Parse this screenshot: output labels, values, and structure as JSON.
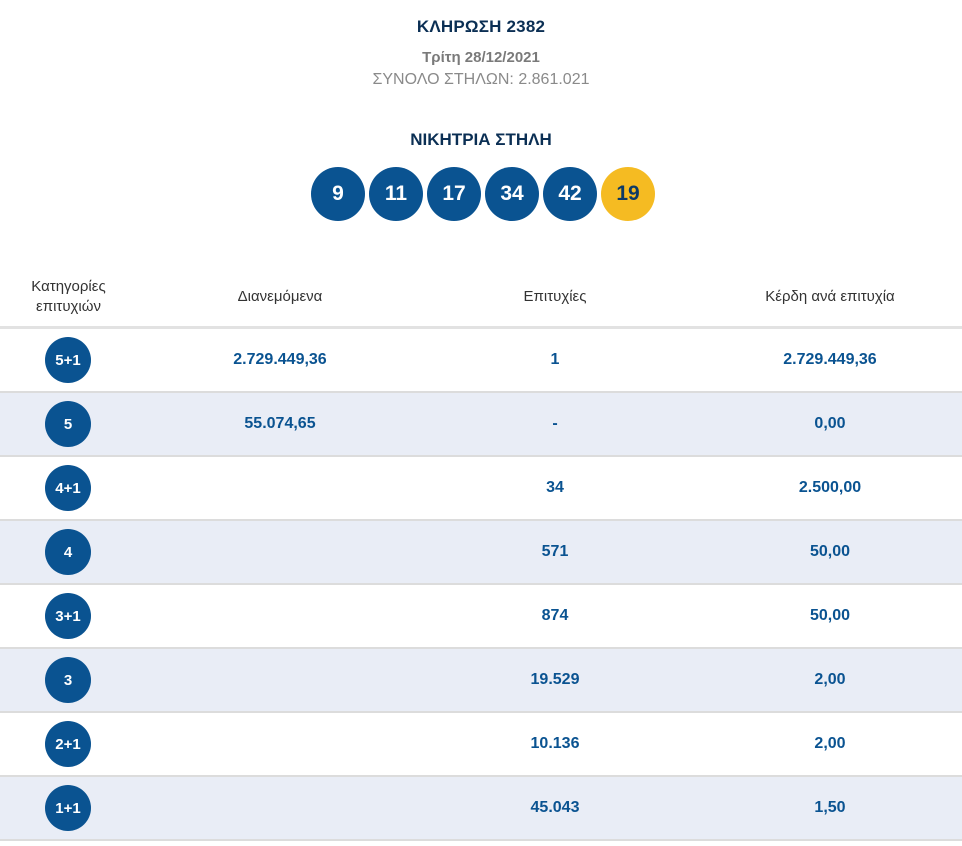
{
  "header": {
    "title": "ΚΛΗΡΩΣΗ 2382",
    "date": "Τρίτη 28/12/2021",
    "total_columns": "ΣΥΝΟΛΟ ΣΤΗΛΩΝ: 2.861.021"
  },
  "winning": {
    "title": "ΝΙΚΗΤΡΙΑ ΣΤΗΛΗ",
    "numbers": [
      "9",
      "11",
      "17",
      "34",
      "42"
    ],
    "bonus": "19"
  },
  "colors": {
    "ball_blue": "#0a5391",
    "ball_bonus": "#f5bb22",
    "row_alt": "#e9edf6"
  },
  "table": {
    "headers": {
      "category": "Κατηγορίες επιτυχιών",
      "pool": "Διανεμόμενα",
      "winners": "Επιτυχίες",
      "prize": "Κέρδη ανά επιτυχία"
    },
    "rows": [
      {
        "category": "5+1",
        "pool": "2.729.449,36",
        "winners": "1",
        "prize": "2.729.449,36"
      },
      {
        "category": "5",
        "pool": "55.074,65",
        "winners": "-",
        "prize": "0,00"
      },
      {
        "category": "4+1",
        "pool": "",
        "winners": "34",
        "prize": "2.500,00"
      },
      {
        "category": "4",
        "pool": "",
        "winners": "571",
        "prize": "50,00"
      },
      {
        "category": "3+1",
        "pool": "",
        "winners": "874",
        "prize": "50,00"
      },
      {
        "category": "3",
        "pool": "",
        "winners": "19.529",
        "prize": "2,00"
      },
      {
        "category": "2+1",
        "pool": "",
        "winners": "10.136",
        "prize": "2,00"
      },
      {
        "category": "1+1",
        "pool": "",
        "winners": "45.043",
        "prize": "1,50"
      }
    ]
  }
}
